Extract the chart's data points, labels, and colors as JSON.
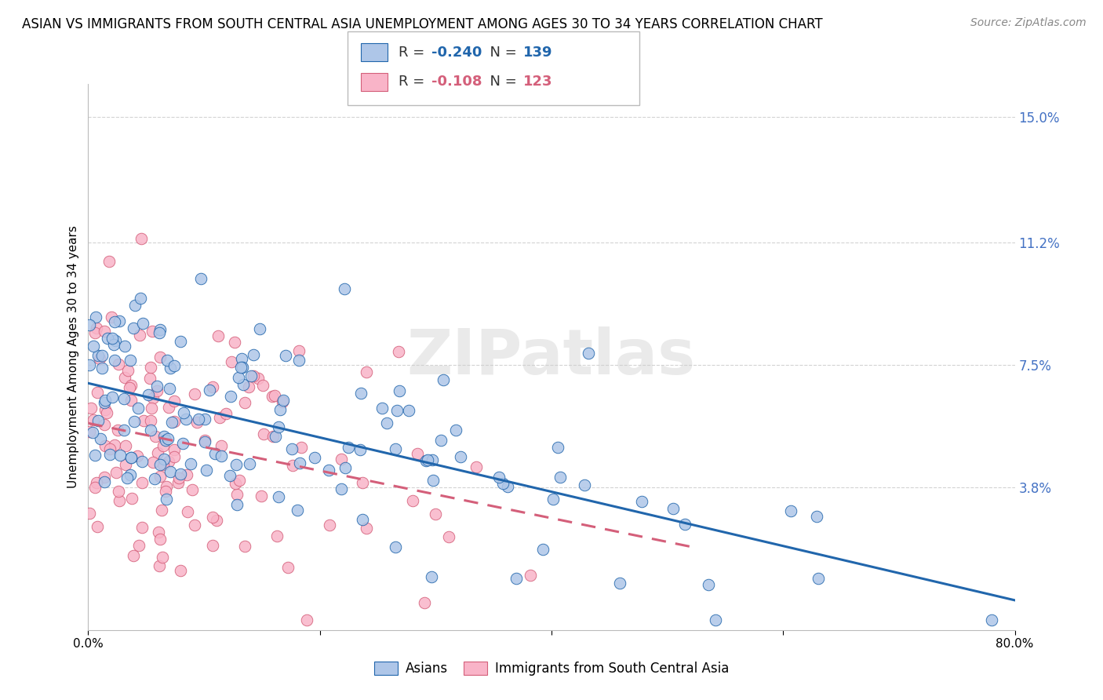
{
  "title": "ASIAN VS IMMIGRANTS FROM SOUTH CENTRAL ASIA UNEMPLOYMENT AMONG AGES 30 TO 34 YEARS CORRELATION CHART",
  "source": "Source: ZipAtlas.com",
  "ylabel": "Unemployment Among Ages 30 to 34 years",
  "xlim": [
    0.0,
    0.8
  ],
  "ylim": [
    -0.005,
    0.16
  ],
  "yticks": [
    0.038,
    0.075,
    0.112,
    0.15
  ],
  "ytick_labels": [
    "3.8%",
    "7.5%",
    "11.2%",
    "15.0%"
  ],
  "background_color": "#ffffff",
  "watermark": "ZIPatlas",
  "legend": {
    "series1": {
      "label": "Asians",
      "R": "-0.240",
      "N": "139",
      "color": "#aec6e8",
      "line_color": "#2166ac"
    },
    "series2": {
      "label": "Immigrants from South Central Asia",
      "R": "-0.108",
      "N": "123",
      "color": "#f9b4c8",
      "line_color": "#d45f7a"
    }
  },
  "title_fontsize": 12,
  "axis_label_fontsize": 11,
  "tick_fontsize": 11,
  "source_fontsize": 10,
  "grid_color": "#d3d3d3",
  "right_ytick_color": "#4472c4"
}
